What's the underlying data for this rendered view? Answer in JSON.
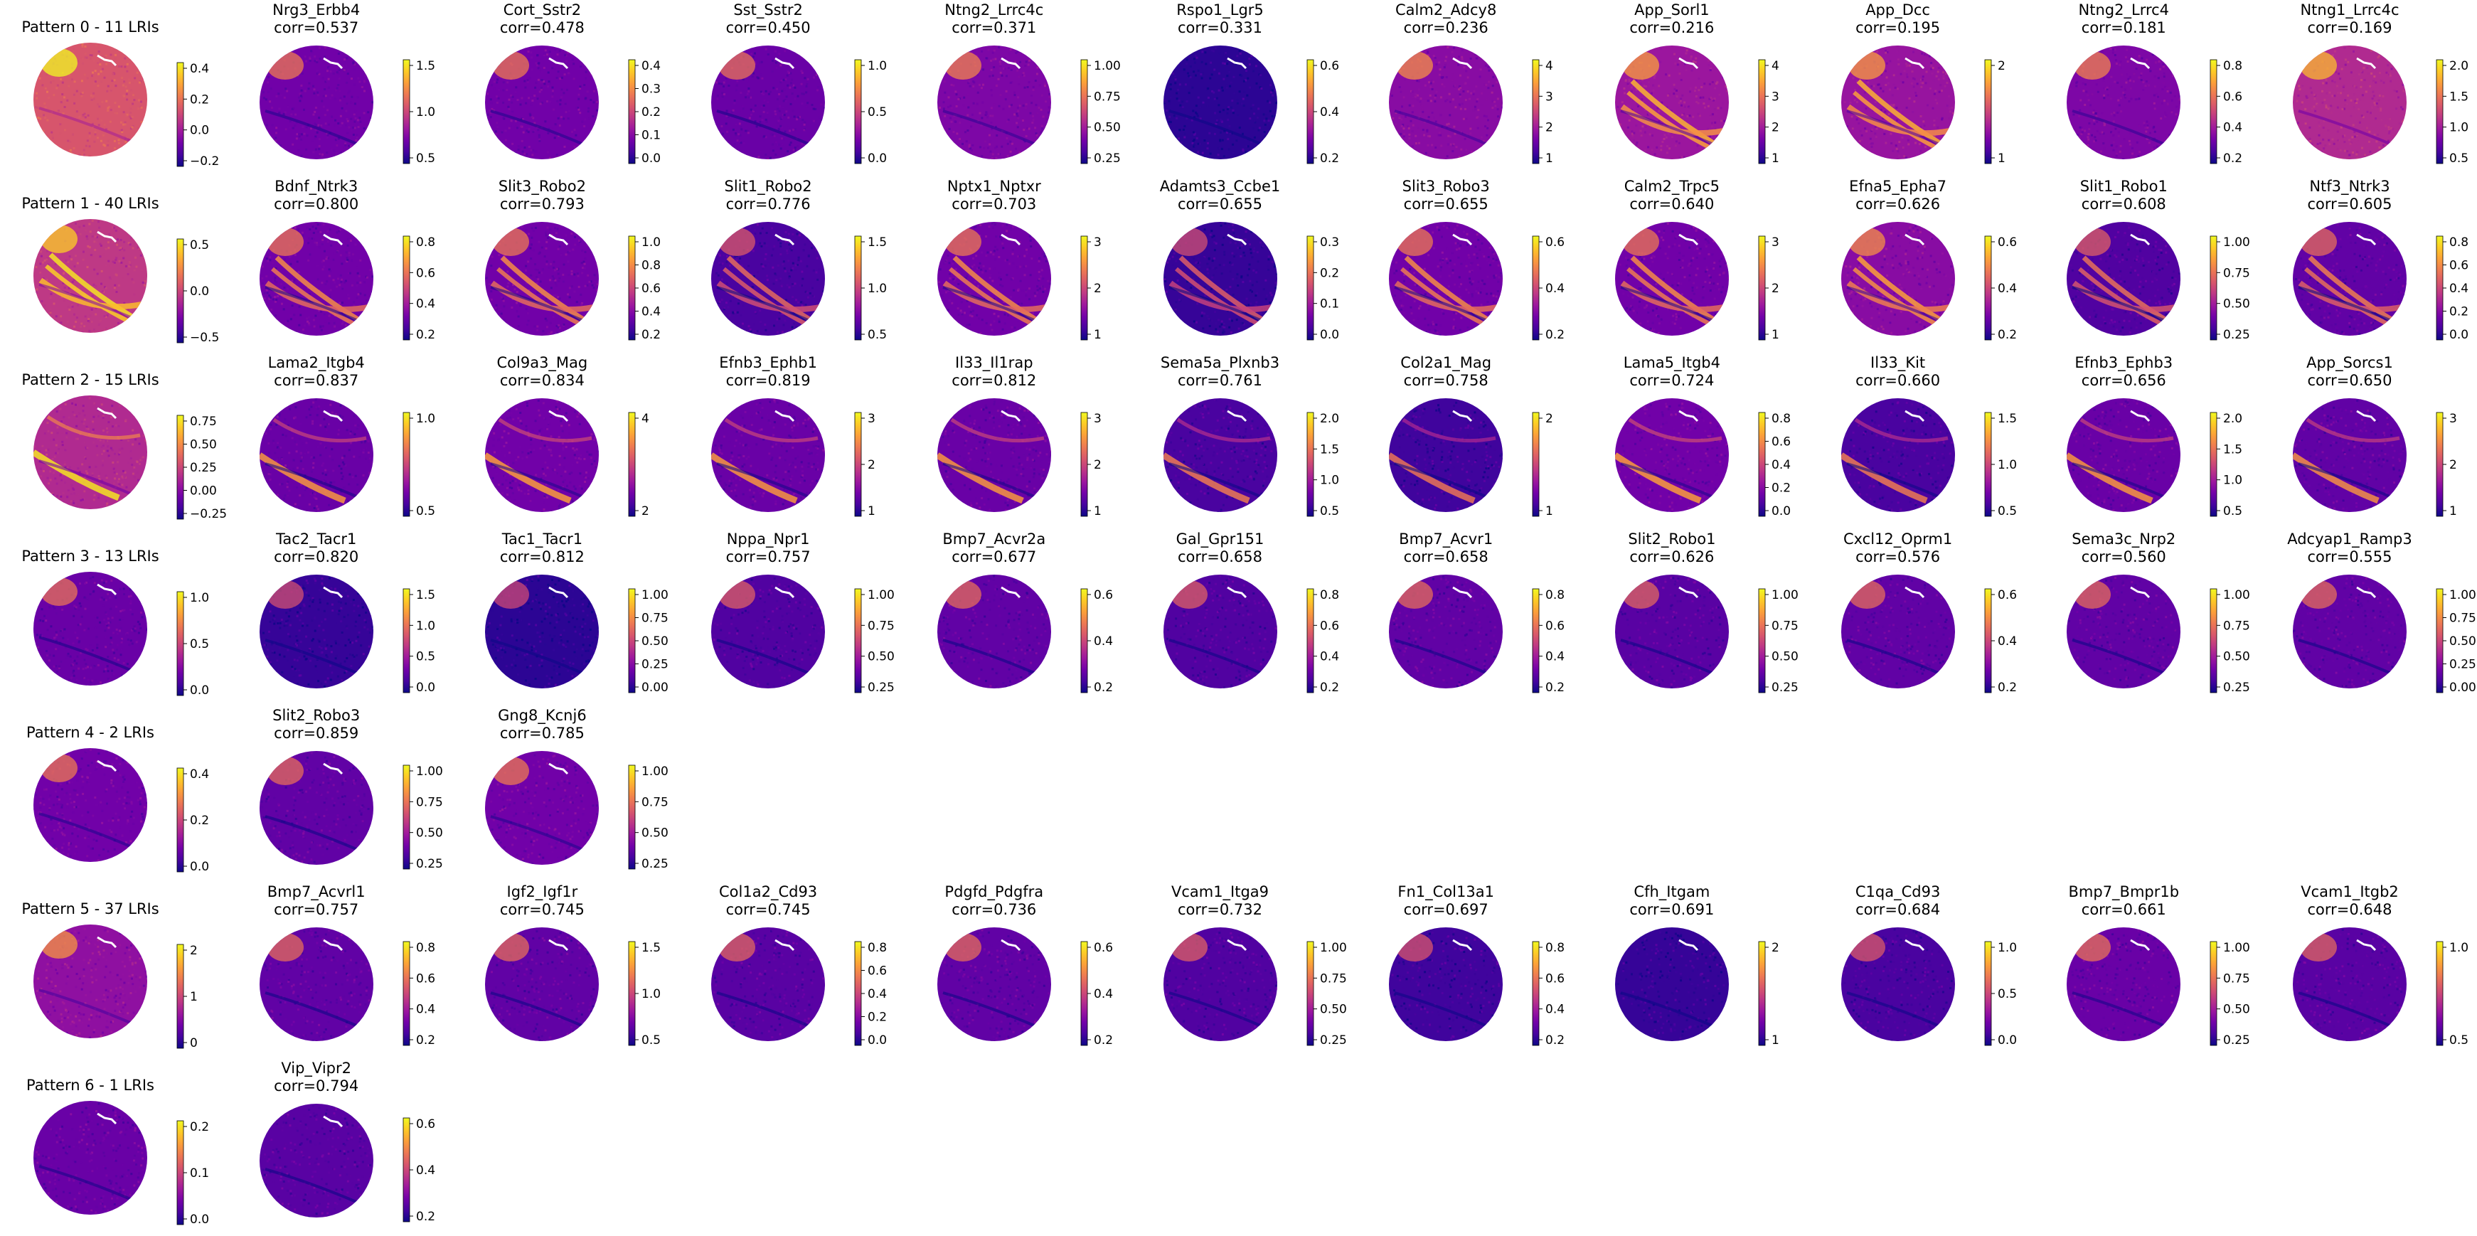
{
  "colormap": "plasma",
  "colors": {
    "cmap": [
      "#0d0887",
      "#46039f",
      "#7201a8",
      "#9c179e",
      "#bd3786",
      "#d8576b",
      "#ed7953",
      "#fb9f3a",
      "#fdca26",
      "#f0f921"
    ],
    "background": "#ffffff",
    "text": "#000000"
  },
  "chart_data": [
    {
      "type": "heatmap",
      "rows": [
        {
          "pattern": {
            "title": "Pattern 0 - 11 LRIs",
            "colorbar_ticks": [
              "0.4",
              "0.2",
              "0.0",
              "−0.2"
            ],
            "level": 0.55,
            "motif": "upper"
          },
          "panels": [
            {
              "title": "Nrg3_Erbb4",
              "corr": "corr=0.537",
              "colorbar_ticks": [
                "1.5",
                "1.0",
                "0.5"
              ],
              "level": 0.22,
              "motif": "upper"
            },
            {
              "title": "Cort_Sstr2",
              "corr": "corr=0.478",
              "colorbar_ticks": [
                "0.4",
                "0.3",
                "0.2",
                "0.1",
                "0.0"
              ],
              "level": 0.22,
              "motif": "upper"
            },
            {
              "title": "Sst_Sstr2",
              "corr": "corr=0.450",
              "colorbar_ticks": [
                "1.0",
                "0.5",
                "0.0"
              ],
              "level": 0.2,
              "motif": "upper"
            },
            {
              "title": "Ntng2_Lrrc4c",
              "corr": "corr=0.371",
              "colorbar_ticks": [
                "1.00",
                "0.75",
                "0.50",
                "0.25"
              ],
              "level": 0.25,
              "motif": "upper"
            },
            {
              "title": "Rspo1_Lgr5",
              "corr": "corr=0.331",
              "colorbar_ticks": [
                "0.6",
                "0.4",
                "0.2"
              ],
              "level": 0.06,
              "motif": "none"
            },
            {
              "title": "Calm2_Adcy8",
              "corr": "corr=0.236",
              "colorbar_ticks": [
                "4",
                "3",
                "2",
                "1"
              ],
              "level": 0.28,
              "motif": "upper"
            },
            {
              "title": "App_Sorl1",
              "corr": "corr=0.216",
              "colorbar_ticks": [
                "4",
                "3",
                "2",
                "1"
              ],
              "level": 0.33,
              "motif": "bands"
            },
            {
              "title": "App_Dcc",
              "corr": "corr=0.195",
              "colorbar_ticks": [
                "2",
                "1"
              ],
              "level": 0.32,
              "motif": "bands"
            },
            {
              "title": "Ntng2_Lrrc4",
              "corr": "corr=0.181",
              "colorbar_ticks": [
                "0.8",
                "0.6",
                "0.4",
                "0.2"
              ],
              "level": 0.25,
              "motif": "upper"
            },
            {
              "title": "Ntng1_Lrrc4c",
              "corr": "corr=0.169",
              "colorbar_ticks": [
                "2.0",
                "1.5",
                "1.0",
                "0.5"
              ],
              "level": 0.4,
              "motif": "upper"
            }
          ]
        },
        {
          "pattern": {
            "title": "Pattern 1 - 40 LRIs",
            "colorbar_ticks": [
              "0.5",
              "0.0",
              "−0.5"
            ],
            "level": 0.45,
            "motif": "bands"
          },
          "panels": [
            {
              "title": "Bdnf_Ntrk3",
              "corr": "corr=0.800",
              "colorbar_ticks": [
                "0.8",
                "0.6",
                "0.4",
                "0.2"
              ],
              "level": 0.22,
              "motif": "bands"
            },
            {
              "title": "Slit3_Robo2",
              "corr": "corr=0.793",
              "colorbar_ticks": [
                "1.0",
                "0.8",
                "0.6",
                "0.4",
                "0.2"
              ],
              "level": 0.22,
              "motif": "bands"
            },
            {
              "title": "Slit1_Robo2",
              "corr": "corr=0.776",
              "colorbar_ticks": [
                "1.5",
                "1.0",
                "0.5"
              ],
              "level": 0.12,
              "motif": "bands"
            },
            {
              "title": "Nptx1_Nptxr",
              "corr": "corr=0.703",
              "colorbar_ticks": [
                "3",
                "2",
                "1"
              ],
              "level": 0.22,
              "motif": "bands"
            },
            {
              "title": "Adamts3_Ccbe1",
              "corr": "corr=0.655",
              "colorbar_ticks": [
                "0.3",
                "0.2",
                "0.1",
                "0.0"
              ],
              "level": 0.08,
              "motif": "bands"
            },
            {
              "title": "Slit3_Robo3",
              "corr": "corr=0.655",
              "colorbar_ticks": [
                "0.6",
                "0.4",
                "0.2"
              ],
              "level": 0.22,
              "motif": "bands"
            },
            {
              "title": "Calm2_Trpc5",
              "corr": "corr=0.640",
              "colorbar_ticks": [
                "3",
                "2",
                "1"
              ],
              "level": 0.22,
              "motif": "bands"
            },
            {
              "title": "Efna5_Epha7",
              "corr": "corr=0.626",
              "colorbar_ticks": [
                "0.6",
                "0.4",
                "0.2"
              ],
              "level": 0.28,
              "motif": "bands"
            },
            {
              "title": "Slit1_Robo1",
              "corr": "corr=0.608",
              "colorbar_ticks": [
                "1.00",
                "0.75",
                "0.50",
                "0.25"
              ],
              "level": 0.14,
              "motif": "bands"
            },
            {
              "title": "Ntf3_Ntrk3",
              "corr": "corr=0.605",
              "colorbar_ticks": [
                "0.8",
                "0.6",
                "0.4",
                "0.2",
                "0.0"
              ],
              "level": 0.18,
              "motif": "bands"
            }
          ]
        },
        {
          "pattern": {
            "title": "Pattern 2 - 15 LRIs",
            "colorbar_ticks": [
              "0.75",
              "0.50",
              "0.25",
              "0.00",
              "−0.25"
            ],
            "level": 0.4,
            "motif": "lower"
          },
          "panels": [
            {
              "title": "Lama2_Itgb4",
              "corr": "corr=0.837",
              "colorbar_ticks": [
                "1.0",
                "0.5"
              ],
              "level": 0.2,
              "motif": "lower"
            },
            {
              "title": "Col9a3_Mag",
              "corr": "corr=0.834",
              "colorbar_ticks": [
                "4",
                "2"
              ],
              "level": 0.22,
              "motif": "lower"
            },
            {
              "title": "Efnb3_Ephb1",
              "corr": "corr=0.819",
              "colorbar_ticks": [
                "3",
                "2",
                "1"
              ],
              "level": 0.2,
              "motif": "lower"
            },
            {
              "title": "Il33_Il1rap",
              "corr": "corr=0.812",
              "colorbar_ticks": [
                "3",
                "2",
                "1"
              ],
              "level": 0.2,
              "motif": "lower"
            },
            {
              "title": "Sema5a_Plxnb3",
              "corr": "corr=0.761",
              "colorbar_ticks": [
                "2.0",
                "1.5",
                "1.0",
                "0.5"
              ],
              "level": 0.12,
              "motif": "lower"
            },
            {
              "title": "Col2a1_Mag",
              "corr": "corr=0.758",
              "colorbar_ticks": [
                "2",
                "1"
              ],
              "level": 0.1,
              "motif": "lower"
            },
            {
              "title": "Lama5_Itgb4",
              "corr": "corr=0.724",
              "colorbar_ticks": [
                "0.8",
                "0.6",
                "0.4",
                "0.2",
                "0.0"
              ],
              "level": 0.22,
              "motif": "lower"
            },
            {
              "title": "Il33_Kit",
              "corr": "corr=0.660",
              "colorbar_ticks": [
                "1.5",
                "1.0",
                "0.5"
              ],
              "level": 0.12,
              "motif": "lower"
            },
            {
              "title": "Efnb3_Ephb3",
              "corr": "corr=0.656",
              "colorbar_ticks": [
                "2.0",
                "1.5",
                "1.0",
                "0.5"
              ],
              "level": 0.2,
              "motif": "lower"
            },
            {
              "title": "App_Sorcs1",
              "corr": "corr=0.650",
              "colorbar_ticks": [
                "3",
                "2",
                "1"
              ],
              "level": 0.18,
              "motif": "lower"
            }
          ]
        },
        {
          "pattern": {
            "title": "Pattern 3 - 13 LRIs",
            "colorbar_ticks": [
              "1.0",
              "0.5",
              "0.0"
            ],
            "level": 0.2,
            "motif": "upper"
          },
          "panels": [
            {
              "title": "Tac2_Tacr1",
              "corr": "corr=0.820",
              "colorbar_ticks": [
                "1.5",
                "1.0",
                "0.5",
                "0.0"
              ],
              "level": 0.08,
              "motif": "upper"
            },
            {
              "title": "Tac1_Tacr1",
              "corr": "corr=0.812",
              "colorbar_ticks": [
                "1.00",
                "0.75",
                "0.50",
                "0.25",
                "0.00"
              ],
              "level": 0.06,
              "motif": "upper"
            },
            {
              "title": "Nppa_Npr1",
              "corr": "corr=0.757",
              "colorbar_ticks": [
                "1.00",
                "0.75",
                "0.50",
                "0.25"
              ],
              "level": 0.14,
              "motif": "upper"
            },
            {
              "title": "Bmp7_Acvr2a",
              "corr": "corr=0.677",
              "colorbar_ticks": [
                "0.6",
                "0.4",
                "0.2"
              ],
              "level": 0.18,
              "motif": "upper"
            },
            {
              "title": "Gal_Gpr151",
              "corr": "corr=0.658",
              "colorbar_ticks": [
                "0.8",
                "0.6",
                "0.4",
                "0.2"
              ],
              "level": 0.14,
              "motif": "upper"
            },
            {
              "title": "Bmp7_Acvr1",
              "corr": "corr=0.658",
              "colorbar_ticks": [
                "0.8",
                "0.6",
                "0.4",
                "0.2"
              ],
              "level": 0.18,
              "motif": "upper"
            },
            {
              "title": "Slit2_Robo1",
              "corr": "corr=0.626",
              "colorbar_ticks": [
                "1.00",
                "0.75",
                "0.50",
                "0.25"
              ],
              "level": 0.16,
              "motif": "upper"
            },
            {
              "title": "Cxcl12_Oprm1",
              "corr": "corr=0.576",
              "colorbar_ticks": [
                "0.6",
                "0.4",
                "0.2"
              ],
              "level": 0.18,
              "motif": "upper"
            },
            {
              "title": "Sema3c_Nrp2",
              "corr": "corr=0.560",
              "colorbar_ticks": [
                "1.00",
                "0.75",
                "0.50",
                "0.25"
              ],
              "level": 0.18,
              "motif": "upper"
            },
            {
              "title": "Adcyap1_Ramp3",
              "corr": "corr=0.555",
              "colorbar_ticks": [
                "1.00",
                "0.75",
                "0.50",
                "0.25",
                "0.00"
              ],
              "level": 0.18,
              "motif": "upper"
            }
          ]
        },
        {
          "pattern": {
            "title": "Pattern 4 - 2 LRIs",
            "colorbar_ticks": [
              "0.4",
              "0.2",
              "0.0"
            ],
            "level": 0.22,
            "motif": "upper"
          },
          "panels": [
            {
              "title": "Slit2_Robo3",
              "corr": "corr=0.859",
              "colorbar_ticks": [
                "1.00",
                "0.75",
                "0.50",
                "0.25"
              ],
              "level": 0.18,
              "motif": "upper"
            },
            {
              "title": "Gng8_Kcnj6",
              "corr": "corr=0.785",
              "colorbar_ticks": [
                "1.00",
                "0.75",
                "0.50",
                "0.25"
              ],
              "level": 0.22,
              "motif": "upper"
            }
          ]
        },
        {
          "pattern": {
            "title": "Pattern 5 - 37 LRIs",
            "colorbar_ticks": [
              "2",
              "1",
              "0"
            ],
            "level": 0.3,
            "motif": "upper"
          },
          "panels": [
            {
              "title": "Bmp7_Acvrl1",
              "corr": "corr=0.757",
              "colorbar_ticks": [
                "0.8",
                "0.6",
                "0.4",
                "0.2"
              ],
              "level": 0.18,
              "motif": "upper"
            },
            {
              "title": "Igf2_Igf1r",
              "corr": "corr=0.745",
              "colorbar_ticks": [
                "1.5",
                "1.0",
                "0.5"
              ],
              "level": 0.18,
              "motif": "upper"
            },
            {
              "title": "Col1a2_Cd93",
              "corr": "corr=0.745",
              "colorbar_ticks": [
                "0.8",
                "0.6",
                "0.4",
                "0.2",
                "0.0"
              ],
              "level": 0.16,
              "motif": "upper"
            },
            {
              "title": "Pdgfd_Pdgfra",
              "corr": "corr=0.736",
              "colorbar_ticks": [
                "0.6",
                "0.4",
                "0.2"
              ],
              "level": 0.18,
              "motif": "upper"
            },
            {
              "title": "Vcam1_Itga9",
              "corr": "corr=0.732",
              "colorbar_ticks": [
                "1.00",
                "0.75",
                "0.50",
                "0.25"
              ],
              "level": 0.14,
              "motif": "upper"
            },
            {
              "title": "Fn1_Col13a1",
              "corr": "corr=0.697",
              "colorbar_ticks": [
                "0.8",
                "0.6",
                "0.4",
                "0.2"
              ],
              "level": 0.1,
              "motif": "upper"
            },
            {
              "title": "Cfh_Itgam",
              "corr": "corr=0.691",
              "colorbar_ticks": [
                "2",
                "1"
              ],
              "level": 0.08,
              "motif": "none"
            },
            {
              "title": "C1qa_Cd93",
              "corr": "corr=0.684",
              "colorbar_ticks": [
                "1.0",
                "0.5",
                "0.0"
              ],
              "level": 0.12,
              "motif": "upper"
            },
            {
              "title": "Bmp7_Bmpr1b",
              "corr": "corr=0.661",
              "colorbar_ticks": [
                "1.00",
                "0.75",
                "0.50",
                "0.25"
              ],
              "level": 0.2,
              "motif": "upper"
            },
            {
              "title": "Vcam1_Itgb2",
              "corr": "corr=0.648",
              "colorbar_ticks": [
                "1.0",
                "0.5"
              ],
              "level": 0.16,
              "motif": "upper"
            }
          ]
        },
        {
          "pattern": {
            "title": "Pattern 6 - 1 LRIs",
            "colorbar_ticks": [
              "0.2",
              "0.1",
              "0.0"
            ],
            "level": 0.2,
            "motif": "none"
          },
          "panels": [
            {
              "title": "Vip_Vipr2",
              "corr": "corr=0.794",
              "colorbar_ticks": [
                "0.6",
                "0.4",
                "0.2"
              ],
              "level": 0.16,
              "motif": "none"
            }
          ]
        }
      ]
    }
  ]
}
